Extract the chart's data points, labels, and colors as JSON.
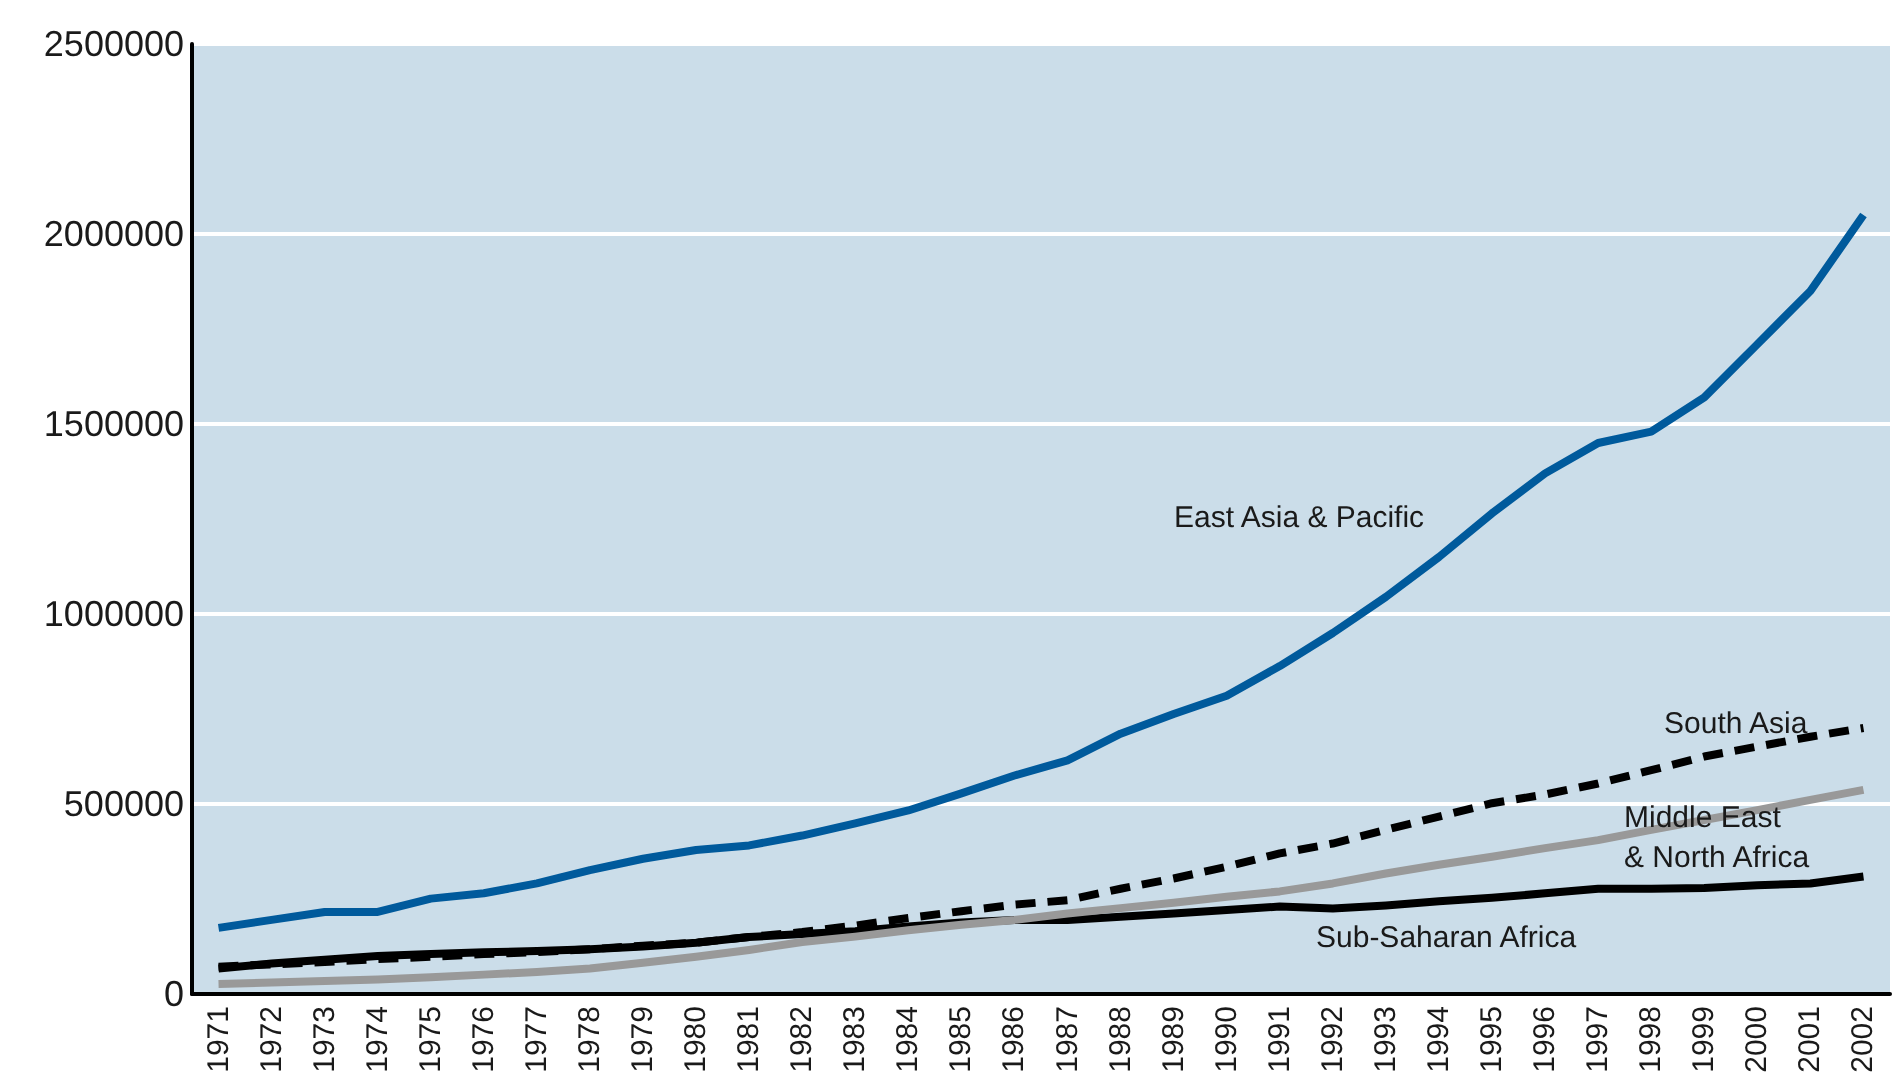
{
  "chart_data": {
    "type": "line",
    "categories": [
      "1971",
      "1972",
      "1973",
      "1974",
      "1975",
      "1976",
      "1977",
      "1978",
      "1979",
      "1980",
      "1981",
      "1982",
      "1983",
      "1984",
      "1985",
      "1986",
      "1987",
      "1988",
      "1989",
      "1990",
      "1991",
      "1992",
      "1993",
      "1994",
      "1995",
      "1996",
      "1997",
      "1998",
      "1999",
      "2000",
      "2001",
      "2002"
    ],
    "series": [
      {
        "name": "East Asia & Pacific",
        "color": "#005a9c",
        "line_style": "solid",
        "values": [
          174000,
          195000,
          216000,
          216000,
          251000,
          265000,
          291000,
          326000,
          356000,
          379000,
          391000,
          417000,
          449000,
          483000,
          528000,
          575000,
          615000,
          685000,
          737000,
          785000,
          863000,
          950000,
          1045000,
          1150000,
          1265000,
          1370000,
          1450000,
          1480000,
          1570000,
          1710000,
          1850000,
          2050000
        ]
      },
      {
        "name": "South Asia",
        "color": "#000000",
        "line_style": "dashed",
        "values": [
          72000,
          78000,
          84000,
          92000,
          98000,
          105000,
          110000,
          118000,
          127000,
          135000,
          150000,
          163000,
          180000,
          200000,
          218000,
          235000,
          247000,
          277000,
          304000,
          335000,
          370000,
          396000,
          432000,
          467000,
          502000,
          525000,
          554000,
          589000,
          625000,
          651000,
          677000,
          700000
        ]
      },
      {
        "name": "Middle East\n& North Africa",
        "color": "#999999",
        "line_style": "solid",
        "values": [
          26000,
          30000,
          34000,
          38000,
          44000,
          51000,
          58000,
          67000,
          82000,
          98000,
          116000,
          137000,
          151000,
          168000,
          182000,
          195000,
          212000,
          226000,
          240000,
          256000,
          270000,
          291000,
          317000,
          340000,
          361000,
          384000,
          405000,
          432000,
          458000,
          484000,
          511000,
          537000
        ]
      },
      {
        "name": "Sub-Saharan Africa",
        "color": "#000000",
        "line_style": "solid",
        "values": [
          67000,
          80000,
          90000,
          100000,
          105000,
          110000,
          113000,
          118000,
          125000,
          135000,
          150000,
          158000,
          165000,
          178000,
          188000,
          195000,
          195000,
          203000,
          212000,
          221000,
          230000,
          225000,
          233000,
          244000,
          253000,
          265000,
          277000,
          277000,
          279000,
          286000,
          291000,
          309000
        ]
      }
    ],
    "ylim": [
      0,
      2500000
    ],
    "yticks": [
      0,
      500000,
      1000000,
      1500000,
      2000000,
      2500000
    ],
    "grid": "y",
    "legend": false,
    "marker": "none"
  }
}
